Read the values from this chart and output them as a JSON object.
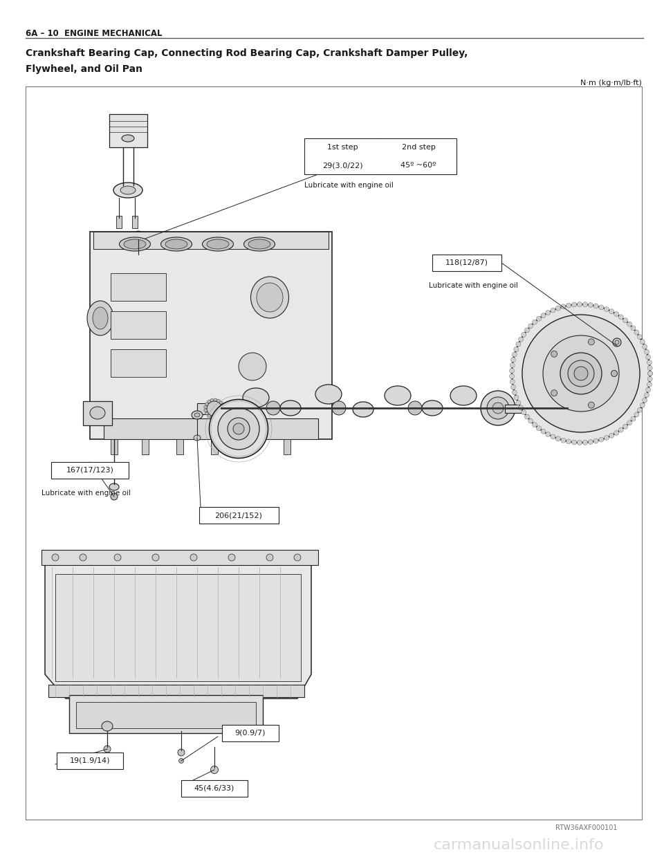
{
  "header_text": "6A – 10  ENGINE MECHANICAL",
  "title_line1": "Crankshaft Bearing Cap, Connecting Rod Bearing Cap, Crankshaft Damper Pulley,",
  "title_line2": "Flywheel, and Oil Pan",
  "units_text": "N·m (kg·m/lb·ft)",
  "ref_code": "RTW36AXF000101",
  "watermark": "carmanualsonline.info",
  "bg_color": "#ffffff",
  "page_bg": "#ffffff",
  "border_color": "#555555",
  "text_color": "#1a1a1a",
  "line_color": "#222222",
  "table_step1_label": "1st step",
  "table_step2_label": "2nd step",
  "table_step1_val": "29(3.0/22)",
  "table_step2_val": "45º ~60º",
  "table_sub": "Lubricate with engine oil",
  "label_118": "118(12/87)",
  "label_118_sub": "Lubricate with engine oil",
  "label_167": "167(17/123)",
  "label_167_sub": "Lubricate with engine oil",
  "label_206": "206(21/152)",
  "label_9": "9(0.9/7)",
  "label_19": "19(1.9/14)",
  "label_45": "45(4.6/33)"
}
